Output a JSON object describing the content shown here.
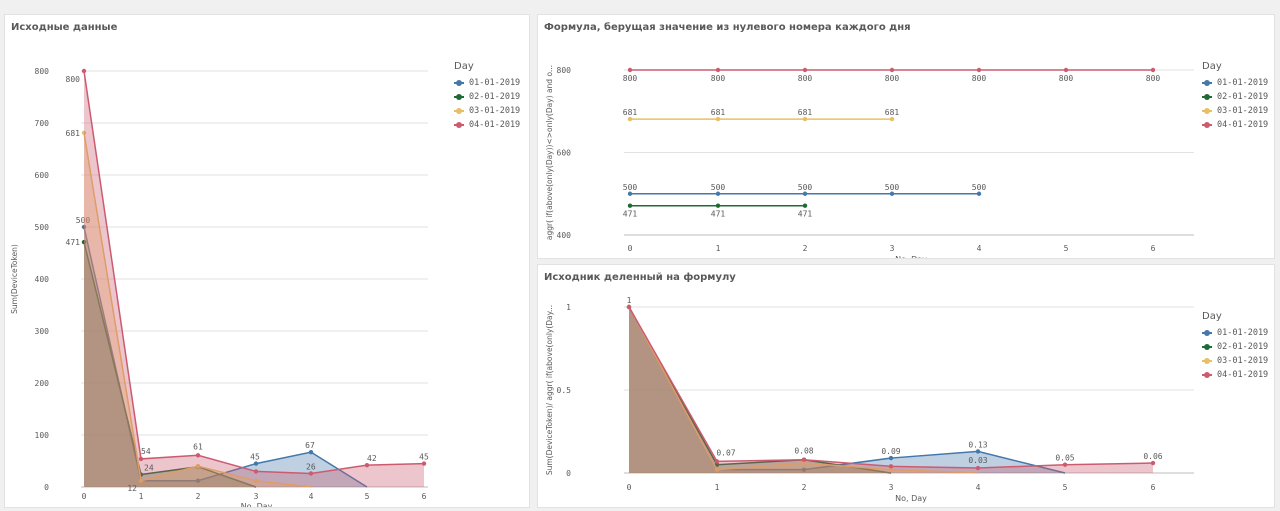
{
  "colors": {
    "s1": "#4477aa",
    "s2": "#1e6b35",
    "s3": "#e8c064",
    "s4": "#cc5b70"
  },
  "legend_items": [
    "01-01-2019",
    "02-01-2019",
    "03-01-2019",
    "04-01-2019"
  ],
  "chart_data": [
    {
      "type": "area",
      "title": "Исходные данные",
      "xlabel": "No, Day",
      "ylabel": "Sum(DeviceToken)",
      "legend_title": "Day",
      "legend_position": "right",
      "grid": true,
      "x": [
        0,
        1,
        2,
        3,
        4,
        5,
        6
      ],
      "ylim": [
        0,
        800
      ],
      "yticks": [
        0,
        100,
        200,
        300,
        400,
        500,
        600,
        700,
        800
      ],
      "series": [
        {
          "name": "01-01-2019",
          "color": "#4477aa",
          "values": [
            500,
            12,
            12,
            45,
            67,
            null,
            null
          ],
          "labels": [
            "500",
            "",
            "",
            "45",
            "67",
            "",
            ""
          ]
        },
        {
          "name": "02-01-2019",
          "color": "#1e6b35",
          "values": [
            471,
            24,
            39,
            null,
            null,
            null,
            null
          ],
          "labels": [
            "471",
            "",
            "",
            "",
            "",
            "",
            ""
          ]
        },
        {
          "name": "03-01-2019",
          "color": "#e8c064",
          "values": [
            681,
            12,
            40,
            12,
            null,
            null,
            null
          ],
          "labels": [
            "681",
            "12",
            "",
            "",
            "",
            "",
            ""
          ]
        },
        {
          "name": "04-01-2019",
          "color": "#cc5b70",
          "values": [
            800,
            54,
            61,
            30,
            26,
            42,
            45
          ],
          "labels": [
            "800",
            "54",
            "61",
            "",
            "26",
            "42",
            "45"
          ]
        }
      ],
      "extra_labels": [
        {
          "x": 1,
          "text": "24",
          "value": 24
        }
      ]
    },
    {
      "type": "line",
      "title": "Формула, берущая значение из нулевого номера каждого дня",
      "xlabel": "No, Day",
      "ylabel": "aggr( if(above(only(Day))<>only(Day) and o...",
      "legend_title": "Day",
      "legend_position": "right",
      "grid": true,
      "x": [
        0,
        1,
        2,
        3,
        4,
        5,
        6
      ],
      "ylim": [
        400,
        800
      ],
      "yticks": [
        400,
        600,
        800
      ],
      "series": [
        {
          "name": "01-01-2019",
          "color": "#4477aa",
          "values": [
            500,
            500,
            500,
            500,
            500,
            null,
            null
          ]
        },
        {
          "name": "02-01-2019",
          "color": "#1e6b35",
          "values": [
            471,
            471,
            471,
            null,
            null,
            null,
            null
          ]
        },
        {
          "name": "03-01-2019",
          "color": "#e8c064",
          "values": [
            681,
            681,
            681,
            681,
            null,
            null,
            null
          ]
        },
        {
          "name": "04-01-2019",
          "color": "#cc5b70",
          "values": [
            800,
            800,
            800,
            800,
            800,
            800,
            800
          ]
        }
      ]
    },
    {
      "type": "area",
      "title": "Исходник деленный на формулу",
      "xlabel": "No, Day",
      "ylabel": "Sum(DeviceToken)/ aggr( if(above(only(Day...",
      "legend_title": "Day",
      "legend_position": "right",
      "grid": true,
      "x": [
        0,
        1,
        2,
        3,
        4,
        5,
        6
      ],
      "ylim": [
        0,
        1
      ],
      "yticks": [
        0,
        0.5,
        1
      ],
      "series": [
        {
          "name": "01-01-2019",
          "color": "#4477aa",
          "values": [
            1,
            0.02,
            0.02,
            0.09,
            0.13,
            null,
            null
          ],
          "labels": [
            "",
            "",
            "",
            "0.09",
            "0.13",
            "",
            ""
          ]
        },
        {
          "name": "02-01-2019",
          "color": "#1e6b35",
          "values": [
            1,
            0.05,
            0.08,
            null,
            null,
            null,
            null
          ],
          "labels": [
            "",
            "",
            "",
            "",
            "",
            "",
            ""
          ]
        },
        {
          "name": "03-01-2019",
          "color": "#e8c064",
          "values": [
            1,
            0.02,
            0.06,
            0.02,
            null,
            null,
            null
          ],
          "labels": [
            "",
            "",
            "",
            "",
            "",
            "",
            ""
          ]
        },
        {
          "name": "04-01-2019",
          "color": "#cc5b70",
          "values": [
            1,
            0.07,
            0.08,
            0.04,
            0.03,
            0.05,
            0.06
          ],
          "labels": [
            "1",
            "0.07",
            "0.08",
            "",
            "0.03",
            "0.05",
            "0.06"
          ]
        }
      ]
    }
  ]
}
